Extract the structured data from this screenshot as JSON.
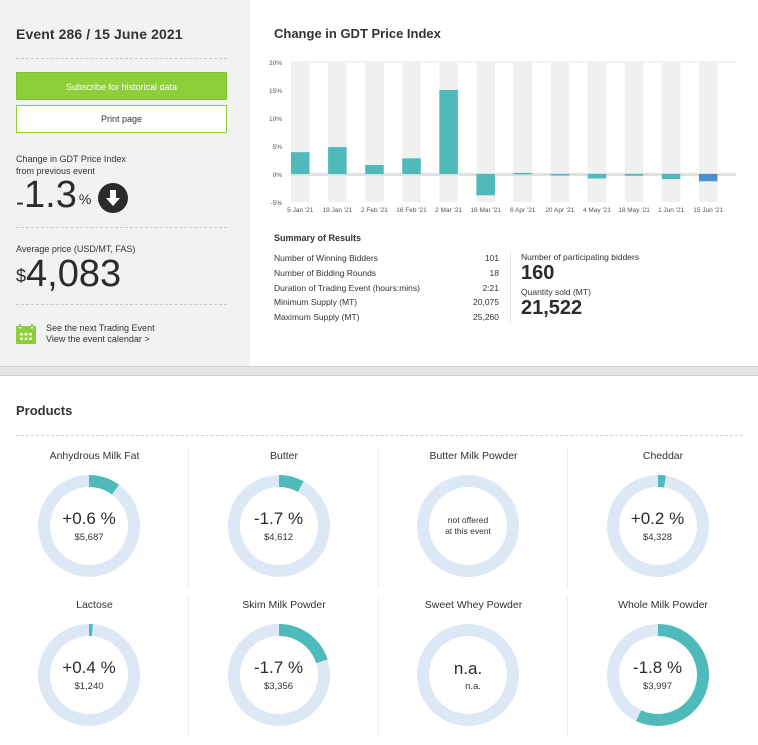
{
  "event": {
    "title": "Event 286 / 15 June 2021",
    "subscribe_label": "Subscribe for historical data",
    "print_label": "Print page",
    "change_label_line1": "Change in GDT Price Index",
    "change_label_line2": "from previous event",
    "change_sign": "-",
    "change_value": "1.3",
    "change_unit": "%",
    "change_direction_icon": "arrow-down-circle-icon",
    "avg_price_label": "Average price (USD/MT, FAS)",
    "avg_price_currency": "$",
    "avg_price_value": "4,083",
    "calendar_line1": "See the next Trading Event",
    "calendar_line2": "View the event calendar >"
  },
  "chart_title": "Change in GDT Price Index",
  "chart_data": {
    "type": "bar",
    "title": "Change in GDT Price Index",
    "xlabel": "",
    "ylabel": "",
    "ylim": [
      -5,
      20
    ],
    "yticks": [
      20,
      15,
      10,
      5,
      0,
      -5
    ],
    "ytick_labels": [
      "20%",
      "15%",
      "10%",
      "5%",
      "0%",
      "-5%"
    ],
    "categories": [
      "5 Jan '21",
      "19 Jan '21",
      "2 Feb '21",
      "16 Feb '21",
      "2 Mar '21",
      "16 Mar '21",
      "6 Apr '21",
      "20 Apr '21",
      "4 May '21",
      "18 May '21",
      "1 Jun '21",
      "15 Jun '21"
    ],
    "values": [
      3.9,
      4.8,
      1.6,
      2.8,
      15.0,
      -3.8,
      0.2,
      -0.2,
      -0.8,
      -0.3,
      -0.9,
      -1.3
    ],
    "highlight_index": 11,
    "colors": {
      "bar": "#4fbaba",
      "highlight": "#4a8fd6",
      "band": "#f0f0f0",
      "zero_line": "#e0e0e0"
    },
    "grid": false
  },
  "summary": {
    "title": "Summary of Results",
    "rows": [
      {
        "label": "Number of Winning Bidders",
        "value": "101"
      },
      {
        "label": "Number of Bidding Rounds",
        "value": "18"
      },
      {
        "label": "Duration of Trading Event (hours:mins)",
        "value": "2:21"
      },
      {
        "label": "Minimum Supply (MT)",
        "value": "20,075"
      },
      {
        "label": "Maximum Supply (MT)",
        "value": "25,260"
      }
    ],
    "participating_label": "Number of participating bidders",
    "participating_value": "160",
    "quantity_label": "Quantity sold (MT)",
    "quantity_value": "21,522"
  },
  "products": {
    "title": "Products",
    "colors": {
      "ring": "#dce8f6",
      "fill": "#4fbaba"
    },
    "items": [
      {
        "name": "Anhydrous Milk Fat",
        "change": "+0.6 %",
        "price": "$5,687",
        "share": 0.1,
        "status": "ok"
      },
      {
        "name": "Butter",
        "change": "-1.7 %",
        "price": "$4,612",
        "share": 0.08,
        "status": "ok"
      },
      {
        "name": "Butter Milk Powder",
        "note_line1": "not offered",
        "note_line2": "at this event",
        "share": 0,
        "status": "not_offered"
      },
      {
        "name": "Cheddar",
        "change": "+0.2 %",
        "price": "$4,328",
        "share": 0.025,
        "status": "ok"
      },
      {
        "name": "Lactose",
        "change": "+0.4 %",
        "price": "$1,240",
        "share": 0.012,
        "status": "ok"
      },
      {
        "name": "Skim Milk Powder",
        "change": "-1.7 %",
        "price": "$3,356",
        "share": 0.2,
        "status": "ok"
      },
      {
        "name": "Sweet Whey Powder",
        "change": "n.a.",
        "price": "n.a.",
        "share": 0,
        "status": "na"
      },
      {
        "name": "Whole Milk Powder",
        "change": "-1.8 %",
        "price": "$3,997",
        "share": 0.57,
        "status": "ok"
      }
    ]
  }
}
